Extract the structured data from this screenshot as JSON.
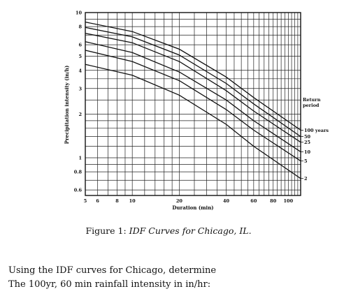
{
  "chart_data": {
    "type": "line",
    "title": "",
    "xlabel": "Duration (min)",
    "ylabel": "Precipitation intensity (in/h)",
    "x_scale": "log",
    "y_scale": "log",
    "xlim": [
      5,
      120
    ],
    "ylim": [
      0.55,
      10
    ],
    "x_ticks": [
      "5",
      "6",
      "8",
      "10",
      "20",
      "40",
      "60",
      "80",
      "100"
    ],
    "x_tick_values": [
      5,
      6,
      8,
      10,
      20,
      40,
      60,
      80,
      100
    ],
    "y_ticks": [
      "10",
      "8",
      "6",
      "5",
      "4",
      "3",
      "2",
      "1",
      "0.8",
      "0.6"
    ],
    "y_tick_values": [
      10,
      8,
      6,
      5,
      4,
      3,
      2,
      1,
      0.8,
      0.6
    ],
    "grid": true,
    "legend_title": "Return period",
    "legend_position": "right",
    "series": [
      {
        "name": "100 years",
        "label": "100 years",
        "x": [
          5,
          10,
          20,
          40,
          60,
          120
        ],
        "values": [
          8.6,
          7.4,
          5.6,
          3.6,
          2.6,
          1.55
        ]
      },
      {
        "name": "50",
        "label": "50",
        "x": [
          5,
          10,
          20,
          40,
          60,
          120
        ],
        "values": [
          7.9,
          6.8,
          5.1,
          3.25,
          2.35,
          1.4
        ]
      },
      {
        "name": "25",
        "label": "25",
        "x": [
          5,
          10,
          20,
          40,
          60,
          120
        ],
        "values": [
          7.2,
          6.2,
          4.6,
          2.9,
          2.1,
          1.28
        ]
      },
      {
        "name": "10",
        "label": "10",
        "x": [
          5,
          10,
          20,
          40,
          60,
          120
        ],
        "values": [
          6.3,
          5.3,
          3.9,
          2.5,
          1.8,
          1.1
        ]
      },
      {
        "name": "5",
        "label": "5",
        "x": [
          5,
          10,
          20,
          40,
          60,
          120
        ],
        "values": [
          5.5,
          4.6,
          3.4,
          2.15,
          1.55,
          0.95
        ]
      },
      {
        "name": "2",
        "label": "2",
        "x": [
          5,
          10,
          20,
          40,
          60,
          120
        ],
        "values": [
          4.4,
          3.7,
          2.7,
          1.7,
          1.2,
          0.72
        ]
      }
    ]
  },
  "caption": {
    "prefix": "Figure 1: ",
    "text": "IDF Curves for Chicago, IL."
  },
  "question": {
    "line1": "Using the IDF curves for Chicago, determine",
    "line2": "The 100yr, 60 min rainfall intensity in in/hr:"
  }
}
